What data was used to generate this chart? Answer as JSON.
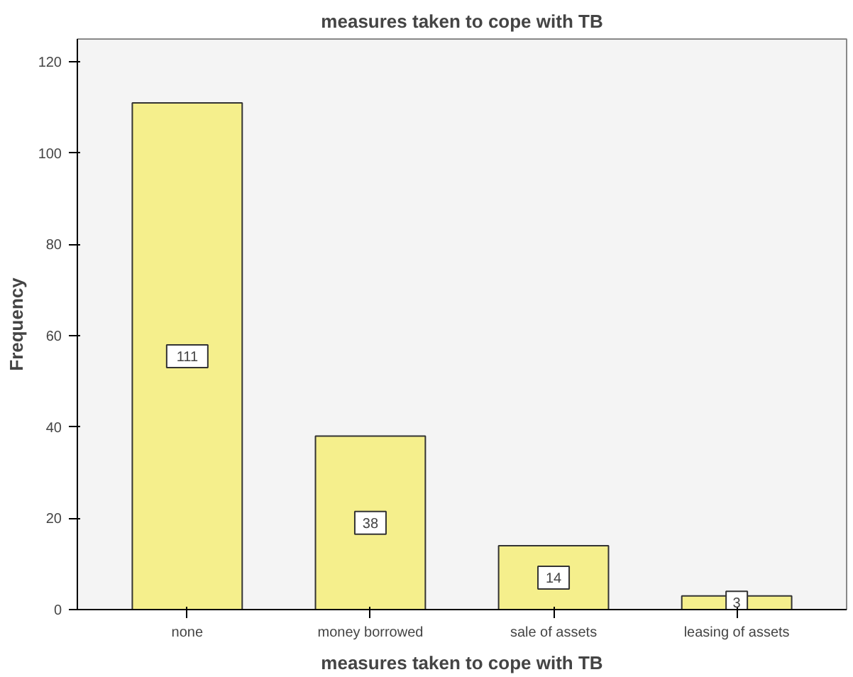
{
  "chart_data": {
    "type": "bar",
    "title": "measures taken to cope with TB",
    "xlabel": "measures taken to cope with TB",
    "ylabel": "Frequency",
    "categories": [
      "none",
      "money borrowed",
      "sale of assets",
      "leasing of assets"
    ],
    "values": [
      111,
      38,
      14,
      3
    ],
    "color": "#f5ef8c",
    "ylim": [
      0,
      125
    ],
    "yticks": [
      0,
      20,
      40,
      60,
      80,
      100,
      120
    ],
    "grid": false,
    "data_labels": true
  }
}
